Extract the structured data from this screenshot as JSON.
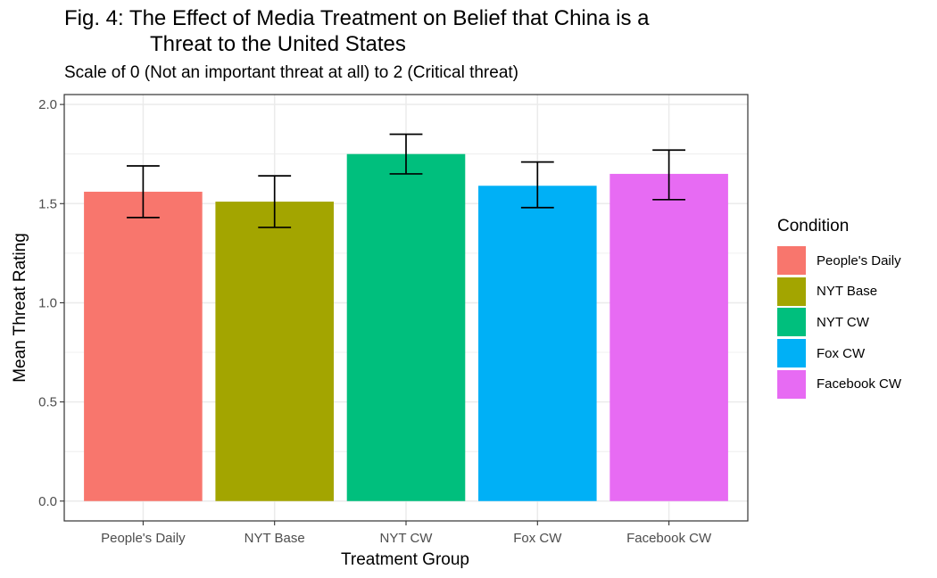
{
  "chart_data": {
    "type": "bar",
    "title_line1": "Fig. 4: The Effect of Media Treatment on Belief that China is a",
    "title_line2": "Threat to the United States",
    "subtitle": "Scale of 0 (Not an important threat at all) to 2 (Critical threat)",
    "xlabel": "Treatment Group",
    "ylabel": "Mean Threat Rating",
    "categories": [
      "People's Daily",
      "NYT Base",
      "NYT CW",
      "Fox CW",
      "Facebook CW"
    ],
    "values": [
      1.56,
      1.51,
      1.75,
      1.59,
      1.65
    ],
    "error_low": [
      1.43,
      1.38,
      1.65,
      1.48,
      1.52
    ],
    "error_high": [
      1.69,
      1.64,
      1.85,
      1.71,
      1.77
    ],
    "colors": [
      "#F8766D",
      "#A3A500",
      "#00BF7D",
      "#00B0F6",
      "#E76BF3"
    ],
    "ylim": [
      -0.1,
      2.05
    ],
    "yticks": [
      0.0,
      0.5,
      1.0,
      1.5,
      2.0
    ],
    "ytick_labels": [
      "0.0",
      "0.5",
      "1.0",
      "1.5",
      "2.0"
    ],
    "grid": true,
    "legend": {
      "title": "Condition",
      "position": "right",
      "items": [
        "People's Daily",
        "NYT Base",
        "NYT CW",
        "Fox CW",
        "Facebook CW"
      ]
    }
  }
}
